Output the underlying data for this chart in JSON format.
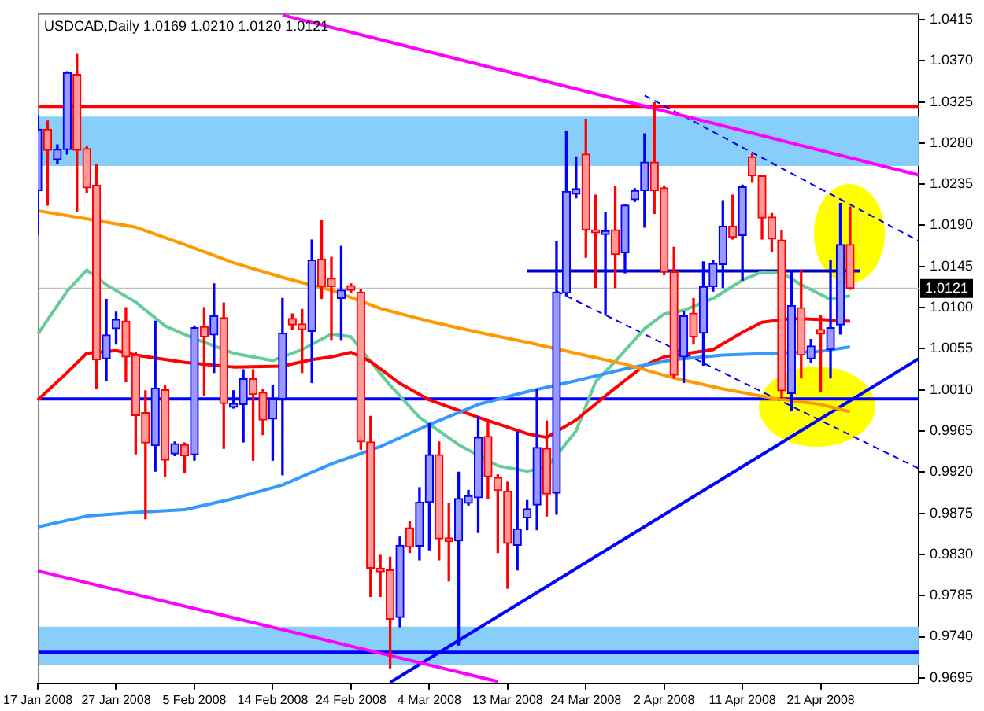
{
  "chart_data": {
    "type": "candlestick",
    "title": "USDCAD,Daily 1.0169 1.0210 1.0120 1.0121",
    "categories": [
      "17 Jan 2008",
      null,
      null,
      null,
      null,
      null,
      null,
      null,
      "27 Jan 2008",
      null,
      null,
      null,
      null,
      null,
      null,
      null,
      "5 Feb 2008",
      null,
      null,
      null,
      null,
      null,
      null,
      null,
      "14 Feb 2008",
      null,
      null,
      null,
      null,
      null,
      null,
      null,
      "24 Feb 2008",
      null,
      null,
      null,
      null,
      null,
      null,
      null,
      "4 Mar 2008",
      null,
      null,
      null,
      null,
      null,
      null,
      null,
      "13 Mar 2008",
      null,
      null,
      null,
      null,
      null,
      null,
      null,
      "24 Mar 2008",
      null,
      null,
      null,
      null,
      null,
      null,
      null,
      "2 Apr 2008",
      null,
      null,
      null,
      null,
      null,
      null,
      null,
      "11 Apr 2008",
      null,
      null,
      null,
      null,
      null,
      null,
      null,
      "21 Apr 2008",
      null,
      null,
      null,
      null,
      null,
      null,
      null,
      null,
      null,
      null
    ],
    "ohlc": [
      [
        1.0228,
        1.031,
        1.018,
        1.0295
      ],
      [
        1.0295,
        1.0304,
        1.0212,
        1.0272
      ],
      [
        1.0262,
        1.0278,
        1.0258,
        1.0273
      ],
      [
        1.0273,
        1.0358,
        1.0268,
        1.0357
      ],
      [
        1.0355,
        1.0377,
        1.0205,
        1.0272
      ],
      [
        1.0274,
        1.0276,
        1.0226,
        1.0231
      ],
      [
        1.0234,
        1.0257,
        1.0012,
        1.0043
      ],
      [
        1.0044,
        1.0109,
        1.002,
        1.007
      ],
      [
        1.0077,
        1.0095,
        1.006,
        1.0087
      ],
      [
        1.0085,
        1.01,
        1.0019,
        1.0046
      ],
      [
        1.0048,
        1.0051,
        0.994,
        0.9982
      ],
      [
        0.9985,
        1.0009,
        0.9869,
        0.9952
      ],
      [
        0.9949,
        1.0085,
        0.9921,
        1.0012
      ],
      [
        1.001,
        1.0015,
        0.9915,
        0.9933
      ],
      [
        0.994,
        0.9953,
        0.9938,
        0.9951
      ],
      [
        0.995,
        0.9952,
        0.9919,
        0.9938
      ],
      [
        0.9939,
        1.008,
        0.9933,
        1.0078
      ],
      [
        1.0079,
        1.01,
        1.0004,
        1.0068
      ],
      [
        1.007,
        1.0126,
        1.0029,
        1.0091
      ],
      [
        1.0089,
        1.0105,
        0.9946,
        0.9995
      ],
      [
        0.9991,
        1.0009,
        0.999,
        0.9995
      ],
      [
        0.9994,
        1.0032,
        0.9953,
        1.0022
      ],
      [
        1.0022,
        1.0032,
        0.9933,
        1.0005
      ],
      [
        1.0007,
        1.001,
        0.9961,
        0.9977
      ],
      [
        0.9978,
        1.0015,
        0.9933,
        1.0
      ],
      [
        1.0,
        1.011,
        0.9917,
        1.0072
      ],
      [
        1.0088,
        1.0093,
        1.0076,
        1.0081
      ],
      [
        1.0082,
        1.0098,
        1.0029,
        1.0076
      ],
      [
        1.0074,
        1.0174,
        1.0018,
        1.0152
      ],
      [
        1.0153,
        1.0195,
        1.011,
        1.0123
      ],
      [
        1.0132,
        1.0155,
        1.0065,
        1.0123
      ],
      [
        1.011,
        1.0167,
        1.0065,
        1.0119
      ],
      [
        1.0124,
        1.0126,
        1.0117,
        1.0119
      ],
      [
        1.0117,
        1.012,
        0.9945,
        0.9953
      ],
      [
        0.9953,
        0.9981,
        0.9784,
        0.9815
      ],
      [
        0.9815,
        0.9829,
        0.9784,
        0.9811
      ],
      [
        0.9813,
        0.9827,
        0.9706,
        0.9759
      ],
      [
        0.9761,
        0.9849,
        0.9751,
        0.984
      ],
      [
        0.9859,
        0.9866,
        0.9832,
        0.9838
      ],
      [
        0.9839,
        0.9903,
        0.9824,
        0.9887
      ],
      [
        0.9887,
        0.9973,
        0.9835,
        0.9939
      ],
      [
        0.9939,
        0.9953,
        0.9824,
        0.9847
      ],
      [
        0.9848,
        0.9886,
        0.9801,
        0.9844
      ],
      [
        0.9845,
        0.992,
        0.9731,
        0.9891
      ],
      [
        0.9886,
        0.99,
        0.9884,
        0.9894
      ],
      [
        0.9892,
        0.9981,
        0.9854,
        0.9958
      ],
      [
        0.9959,
        0.9976,
        0.9891,
        0.9915
      ],
      [
        0.9914,
        0.9917,
        0.9832,
        0.99
      ],
      [
        0.9899,
        0.9909,
        0.9793,
        0.9842
      ],
      [
        0.984,
        0.9964,
        0.9813,
        0.9858
      ],
      [
        0.987,
        0.9889,
        0.9857,
        0.988
      ],
      [
        0.9884,
        1.001,
        0.9857,
        0.9947
      ],
      [
        0.9946,
        0.9976,
        0.9872,
        0.9896
      ],
      [
        0.9897,
        1.0172,
        0.9874,
        1.0117
      ],
      [
        1.0116,
        1.0293,
        1.0113,
        1.0227
      ],
      [
        1.0224,
        1.0265,
        1.022,
        1.023
      ],
      [
        1.0268,
        1.0306,
        1.0155,
        1.0185
      ],
      [
        1.0185,
        1.0223,
        1.0122,
        1.0182
      ],
      [
        1.018,
        1.0204,
        1.0093,
        1.0184
      ],
      [
        1.0185,
        1.0232,
        1.0122,
        1.0158
      ],
      [
        1.016,
        1.0213,
        1.0138,
        1.0212
      ],
      [
        1.0218,
        1.023,
        1.0216,
        1.0228
      ],
      [
        1.0228,
        1.029,
        1.0188,
        1.0259
      ],
      [
        1.0259,
        1.0324,
        1.0203,
        1.0228
      ],
      [
        1.0231,
        1.0233,
        1.0136,
        1.0139
      ],
      [
        1.0139,
        1.0166,
        1.0023,
        1.0026
      ],
      [
        1.0046,
        1.0096,
        1.0018,
        1.0091
      ],
      [
        1.0094,
        1.011,
        1.006,
        1.0068
      ],
      [
        1.0072,
        1.015,
        1.0037,
        1.0123
      ],
      [
        1.0123,
        1.0152,
        1.0118,
        1.0148
      ],
      [
        1.0147,
        1.0217,
        1.0122,
        1.0189
      ],
      [
        1.0189,
        1.0223,
        1.0175,
        1.0177
      ],
      [
        1.0179,
        1.0234,
        1.013,
        1.0232
      ],
      [
        1.0265,
        1.0268,
        1.0237,
        1.0244
      ],
      [
        1.0244,
        1.0245,
        1.0175,
        1.0198
      ],
      [
        1.0199,
        1.0203,
        1.0161,
        1.0175
      ],
      [
        1.0174,
        1.0184,
        1.0001,
        1.0009
      ],
      [
        1.0006,
        1.014,
        0.9987,
        1.0102
      ],
      [
        1.01,
        1.0141,
        1.0023,
        1.0048
      ],
      [
        1.0044,
        1.0065,
        1.004,
        1.0058
      ],
      [
        1.0076,
        1.0091,
        1.0008,
        1.0071
      ],
      [
        1.0054,
        1.0152,
        1.0023,
        1.0078
      ],
      [
        1.0081,
        1.0214,
        1.0071,
        1.0169
      ],
      [
        1.0169,
        1.021,
        1.012,
        1.0121
      ],
      null,
      null,
      null,
      null,
      null,
      null,
      null
    ],
    "colors": [
      "#0000ff",
      "#ff0000",
      "#0000ff",
      "#0000ff",
      "#ff0000",
      "#ff0000",
      "#ff0000",
      "#0000ff",
      "#0000ff",
      "#ff0000",
      "#ff0000",
      "#ff0000",
      "#0000ff",
      "#ff0000",
      "#0000ff",
      "#ff0000",
      "#0000ff",
      "#ff0000",
      "#0000ff",
      "#ff0000",
      "#0000ff",
      "#0000ff",
      "#ff0000",
      "#ff0000",
      "#0000ff",
      "#0000ff",
      "#ff0000",
      "#ff0000",
      "#0000ff",
      "#ff0000",
      "#ff0000",
      "#0000ff",
      "#ff0000",
      "#ff0000",
      "#ff0000",
      "#ff0000",
      "#ff0000",
      "#0000ff",
      "#ff0000",
      "#0000ff",
      "#0000ff",
      "#ff0000",
      "#ff0000",
      "#0000ff",
      "#0000ff",
      "#0000ff",
      "#ff0000",
      "#ff0000",
      "#ff0000",
      "#0000ff",
      "#0000ff",
      "#0000ff",
      "#ff0000",
      "#0000ff",
      "#0000ff",
      "#0000ff",
      "#ff0000",
      "#ff0000",
      "#0000ff",
      "#ff0000",
      "#0000ff",
      "#0000ff",
      "#0000ff",
      "#ff0000",
      "#ff0000",
      "#ff0000",
      "#0000ff",
      "#ff0000",
      "#0000ff",
      "#0000ff",
      "#0000ff",
      "#ff0000",
      "#0000ff",
      "#ff0000",
      "#ff0000",
      "#ff0000",
      "#ff0000",
      "#0000ff",
      "#ff0000",
      "#0000ff",
      "#ff0000",
      "#0000ff",
      "#0000ff",
      "#ff0000",
      null,
      null,
      null,
      null,
      null,
      null,
      null
    ],
    "series": [
      {
        "type": "line",
        "color": "#ff9900",
        "values": [
          1.0206,
          null,
          null,
          null,
          null,
          1.0197,
          null,
          null,
          null,
          null,
          1.0188,
          null,
          null,
          null,
          null,
          1.0169,
          null,
          null,
          null,
          null,
          1.0149,
          null,
          null,
          null,
          null,
          1.0133,
          null,
          null,
          null,
          null,
          1.0119,
          null,
          null,
          null,
          null,
          1.0099,
          null,
          null,
          null,
          null,
          1.0085,
          null,
          null,
          null,
          null,
          1.0073,
          null,
          null,
          null,
          null,
          1.0062,
          null,
          null,
          null,
          null,
          1.005,
          null,
          null,
          null,
          null,
          1.0038,
          null,
          null,
          null,
          null,
          1.0023,
          null,
          null,
          null,
          null,
          1.0011,
          null,
          null,
          null,
          null,
          1.0001,
          null,
          null,
          null,
          null,
          0.9994,
          null,
          null,
          0.9986,
          null,
          null,
          null,
          null,
          null,
          null,
          null
        ]
      },
      {
        "type": "line",
        "color": "#3399ff",
        "values": [
          0.986,
          null,
          null,
          null,
          null,
          0.9872,
          null,
          null,
          null,
          null,
          0.9876,
          null,
          null,
          null,
          null,
          0.9879,
          null,
          null,
          null,
          null,
          0.9891,
          null,
          null,
          null,
          null,
          0.9906,
          null,
          null,
          null,
          null,
          0.9929,
          null,
          null,
          null,
          null,
          0.9948,
          null,
          null,
          null,
          null,
          0.9972,
          null,
          null,
          null,
          null,
          0.9994,
          null,
          null,
          null,
          null,
          1.0008,
          null,
          null,
          null,
          null,
          1.002,
          null,
          null,
          null,
          null,
          1.0033,
          null,
          null,
          null,
          null,
          1.0043,
          null,
          null,
          null,
          null,
          1.0048,
          null,
          null,
          null,
          null,
          1.005,
          null,
          null,
          null,
          null,
          1.0052,
          null,
          null,
          1.0057,
          null,
          null,
          null,
          null,
          null,
          null,
          null
        ]
      },
      {
        "type": "line",
        "color": "#ff0000",
        "values": [
          0.9999,
          null,
          null,
          1.0029,
          null,
          1.005,
          null,
          null,
          1.0053,
          null,
          1.0048,
          null,
          null,
          null,
          null,
          1.004,
          null,
          null,
          null,
          null,
          1.0035,
          null,
          null,
          null,
          null,
          1.0036,
          null,
          null,
          1.0043,
          null,
          1.0046,
          null,
          1.0051,
          null,
          1.0041,
          null,
          null,
          1.0017,
          null,
          null,
          0.9999,
          null,
          null,
          null,
          null,
          0.998,
          null,
          null,
          null,
          null,
          0.9962,
          null,
          0.9958,
          null,
          null,
          0.9977,
          null,
          null,
          null,
          1.0012,
          null,
          null,
          1.0037,
          null,
          1.0046,
          null,
          null,
          null,
          null,
          1.0054,
          null,
          null,
          1.0073,
          null,
          1.0084,
          null,
          null,
          1.0088,
          null,
          null,
          1.0087,
          null,
          null,
          1.0085,
          null,
          null,
          null,
          null,
          null,
          null,
          null
        ]
      },
      {
        "type": "line",
        "color": "#66cc99",
        "values": [
          1.0071,
          null,
          null,
          1.0118,
          null,
          1.0141,
          null,
          1.0125,
          null,
          null,
          1.0106,
          null,
          null,
          1.008,
          null,
          null,
          1.0066,
          null,
          null,
          null,
          1.005,
          null,
          null,
          null,
          1.0042,
          null,
          null,
          1.0054,
          null,
          null,
          1.0071,
          null,
          1.0068,
          null,
          1.0041,
          null,
          1.0015,
          null,
          null,
          0.998,
          null,
          null,
          null,
          0.995,
          null,
          null,
          null,
          0.9927,
          null,
          null,
          0.9921,
          null,
          0.9925,
          null,
          null,
          0.9965,
          null,
          1.0019,
          null,
          1.0041,
          null,
          null,
          1.0077,
          null,
          1.0093,
          null,
          1.0097,
          null,
          null,
          1.011,
          null,
          null,
          1.013,
          null,
          1.0139,
          null,
          1.0138,
          null,
          1.0125,
          null,
          null,
          1.0109,
          null,
          1.0113,
          null,
          null,
          null,
          null,
          null,
          null,
          null
        ]
      },
      {
        "type": "line",
        "color": "#ff00ff",
        "values": [
          null,
          null,
          null,
          null,
          null,
          null,
          null,
          null,
          null,
          null,
          null,
          null,
          null,
          null,
          null,
          null,
          null,
          null,
          null,
          null,
          null,
          null,
          null,
          null,
          null,
          1.042,
          null,
          null,
          null,
          null,
          null,
          null,
          null,
          null,
          null,
          null,
          null,
          null,
          null,
          null,
          null,
          null,
          null,
          null,
          null,
          null,
          null,
          null,
          null,
          null,
          null,
          null,
          null,
          null,
          null,
          null,
          null,
          null,
          null,
          null,
          null,
          null,
          null,
          null,
          null,
          null,
          null,
          null,
          null,
          null,
          null,
          null,
          null,
          null,
          null,
          null,
          null,
          null,
          null,
          null,
          null,
          null,
          null,
          null,
          null,
          null,
          null,
          null,
          null,
          null,
          1.0245
        ]
      },
      {
        "type": "line",
        "color": "#ff00ff",
        "values": [
          0.9812,
          null,
          null,
          null,
          null,
          null,
          null,
          null,
          null,
          null,
          null,
          null,
          null,
          null,
          null,
          null,
          null,
          null,
          null,
          null,
          null,
          null,
          null,
          null,
          null,
          null,
          null,
          null,
          null,
          null,
          null,
          null,
          null,
          null,
          null,
          null,
          null,
          null,
          null,
          null,
          null,
          null,
          null,
          null,
          null,
          null,
          null,
          0.9691,
          null,
          null,
          null,
          null,
          null,
          null,
          null,
          null,
          null,
          null,
          null,
          null,
          null,
          null,
          null,
          null,
          null,
          null,
          null,
          null,
          null,
          null,
          null,
          null,
          null,
          null,
          null,
          null,
          null,
          null,
          null,
          null,
          null,
          null,
          null,
          null,
          null,
          null,
          null,
          null,
          null,
          null,
          null
        ]
      },
      {
        "type": "line",
        "color": "#0000ff",
        "values": [
          null,
          null,
          null,
          null,
          null,
          null,
          null,
          null,
          null,
          null,
          null,
          null,
          null,
          null,
          null,
          null,
          null,
          null,
          null,
          null,
          null,
          null,
          null,
          null,
          null,
          null,
          null,
          null,
          null,
          null,
          null,
          null,
          null,
          null,
          null,
          null,
          0.969,
          null,
          null,
          null,
          null,
          null,
          null,
          null,
          null,
          null,
          null,
          null,
          null,
          null,
          null,
          null,
          null,
          null,
          null,
          null,
          null,
          null,
          null,
          null,
          null,
          null,
          null,
          null,
          null,
          null,
          null,
          null,
          null,
          null,
          null,
          null,
          null,
          null,
          null,
          null,
          null,
          null,
          null,
          null,
          null,
          null,
          null,
          null,
          null,
          null,
          null,
          null,
          null,
          null,
          1.0044
        ]
      },
      {
        "type": "line",
        "color": "#0000ff",
        "line_style": "dashed",
        "values": [
          null,
          null,
          null,
          null,
          null,
          null,
          null,
          null,
          null,
          null,
          null,
          null,
          null,
          null,
          null,
          null,
          null,
          null,
          null,
          null,
          null,
          null,
          null,
          null,
          null,
          null,
          null,
          null,
          null,
          null,
          null,
          null,
          null,
          null,
          null,
          null,
          null,
          null,
          null,
          null,
          null,
          null,
          null,
          null,
          null,
          null,
          null,
          null,
          null,
          null,
          null,
          null,
          null,
          null,
          null,
          null,
          null,
          null,
          null,
          null,
          null,
          null,
          1.0332,
          null,
          null,
          null,
          null,
          null,
          null,
          null,
          null,
          null,
          null,
          null,
          null,
          null,
          null,
          null,
          null,
          null,
          null,
          null,
          null,
          null,
          null,
          null,
          null,
          null,
          null,
          null,
          1.0173
        ]
      },
      {
        "type": "line",
        "color": "#0000ff",
        "line_style": "dashed",
        "values": [
          null,
          null,
          null,
          null,
          null,
          null,
          null,
          null,
          null,
          null,
          null,
          null,
          null,
          null,
          null,
          null,
          null,
          null,
          null,
          null,
          null,
          null,
          null,
          null,
          null,
          null,
          null,
          null,
          null,
          null,
          null,
          null,
          null,
          null,
          null,
          null,
          null,
          null,
          null,
          null,
          null,
          null,
          null,
          null,
          null,
          null,
          null,
          null,
          null,
          null,
          null,
          null,
          null,
          1.0118,
          null,
          null,
          null,
          null,
          null,
          null,
          null,
          null,
          null,
          null,
          null,
          null,
          null,
          null,
          null,
          null,
          null,
          null,
          null,
          null,
          null,
          null,
          null,
          null,
          null,
          null,
          null,
          null,
          null,
          null,
          null,
          null,
          null,
          null,
          null,
          null,
          0.9924
        ]
      },
      {
        "type": "line",
        "color": "#0000cc",
        "values": [
          null,
          null,
          null,
          null,
          null,
          null,
          null,
          null,
          null,
          null,
          null,
          null,
          null,
          null,
          null,
          null,
          null,
          null,
          null,
          null,
          null,
          null,
          null,
          null,
          null,
          null,
          null,
          null,
          null,
          null,
          null,
          null,
          null,
          null,
          null,
          null,
          null,
          null,
          null,
          null,
          null,
          null,
          null,
          null,
          null,
          null,
          null,
          null,
          null,
          null,
          1.014,
          null,
          null,
          null,
          null,
          null,
          null,
          null,
          null,
          null,
          null,
          null,
          null,
          null,
          null,
          null,
          null,
          null,
          null,
          null,
          null,
          null,
          null,
          null,
          null,
          null,
          null,
          null,
          null,
          null,
          null,
          null,
          null,
          null,
          1.014,
          null,
          null,
          null,
          null,
          null,
          null
        ]
      }
    ],
    "ref_lines": [
      {
        "axis": "y",
        "value": 1.032,
        "color": "#ff0000"
      },
      {
        "axis": "y",
        "value": 1.0,
        "color": "#0000ff"
      },
      {
        "axis": "y",
        "value": 0.9723,
        "color": "#0000ff"
      },
      {
        "axis": "y",
        "value": 1.0121,
        "label": "1.0121",
        "color": "#c0c0c0"
      }
    ],
    "bands": [
      {
        "axis": "y",
        "from": 1.0255,
        "to": 1.0309,
        "color": "#87cefa"
      },
      {
        "axis": "y",
        "from": 0.9709,
        "to": 0.9751,
        "color": "#87cefa"
      }
    ],
    "ylim": [
      0.9689,
      1.0422
    ],
    "yticks": [
      0.9695,
      {
        "value": 0.974,
        "label": "0.9740"
      },
      0.9785,
      {
        "value": 0.983,
        "label": "0.9830"
      },
      0.9875,
      {
        "value": 0.992,
        "label": "0.9920"
      },
      0.9965,
      {
        "value": 1.001,
        "label": "1.0010"
      },
      1.0055,
      {
        "value": 1.01,
        "label": "1.0100"
      },
      1.0145,
      {
        "value": 1.019,
        "label": "1.0190"
      },
      1.0235,
      {
        "value": 1.028,
        "label": "1.0280"
      },
      1.0325,
      {
        "value": 1.037,
        "label": "1.0370"
      },
      1.0415
    ]
  }
}
